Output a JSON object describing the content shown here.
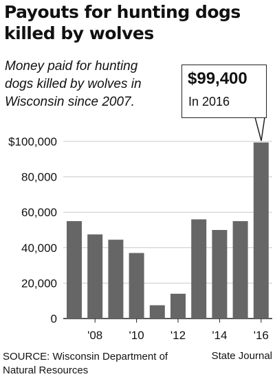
{
  "headline": "Payouts for hunting dogs killed by wolves",
  "subhead": "Money paid for hunting dogs killed by wolves in Wisconsin since 2007.",
  "callout": {
    "value": "$99,400",
    "label": "In 2016"
  },
  "source": "SOURCE: Wisconsin Department of Natural Resources",
  "credit": "State Journal",
  "colors": {
    "bar": "#666666",
    "grid": "#c8c8c8",
    "axis": "#222222",
    "text": "#111111"
  },
  "chart_data": {
    "type": "bar",
    "categories": [
      "2007",
      "2008",
      "2009",
      "2010",
      "2011",
      "2012",
      "2013",
      "2014",
      "2015",
      "2016"
    ],
    "values": [
      55000,
      47500,
      44500,
      37000,
      7500,
      14000,
      56000,
      50000,
      55000,
      99400
    ],
    "x_tick_labels": [
      {
        "category": "2008",
        "label": "'08"
      },
      {
        "category": "2010",
        "label": "'10"
      },
      {
        "category": "2012",
        "label": "'12"
      },
      {
        "category": "2014",
        "label": "'14"
      },
      {
        "category": "2016",
        "label": "'16"
      }
    ],
    "y_ticks": [
      {
        "value": 0,
        "label": "0"
      },
      {
        "value": 20000,
        "label": "20,000"
      },
      {
        "value": 40000,
        "label": "40,000"
      },
      {
        "value": 60000,
        "label": "60,000"
      },
      {
        "value": 80000,
        "label": "80,000"
      },
      {
        "value": 100000,
        "label": "$100,000"
      }
    ],
    "ylim": [
      0,
      100000
    ],
    "grid": true,
    "xlabel": "",
    "ylabel": ""
  }
}
